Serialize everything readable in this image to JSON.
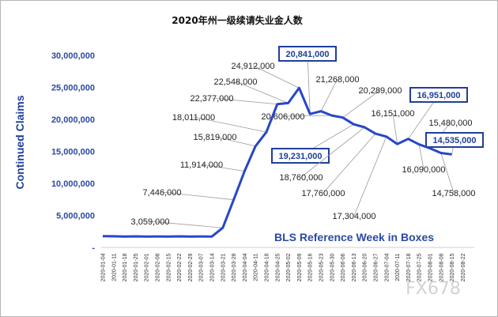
{
  "chart_data": {
    "type": "line",
    "title": "2020年州一级续请失业金人数",
    "ylabel": "Continued Claims",
    "xlabel": "",
    "ylim": [
      0,
      30000000
    ],
    "yticks": [
      {
        "v": 5000000,
        "label": "5,000,000"
      },
      {
        "v": 10000000,
        "label": "10,000,000"
      },
      {
        "v": 15000000,
        "label": "15,000,000"
      },
      {
        "v": 20000000,
        "label": "20,000,000"
      },
      {
        "v": 25000000,
        "label": "25,000,000"
      },
      {
        "v": 30000000,
        "label": "30,000,000"
      }
    ],
    "zero_tick_label": "-",
    "x": [
      "2020-01-04",
      "2020-01-11",
      "2020-01-18",
      "2020-01-25",
      "2020-02-01",
      "2020-02-08",
      "2020-02-15",
      "2020-02-22",
      "2020-02-29",
      "2020-03-07",
      "2020-03-14",
      "2020-03-21",
      "2020-03-28",
      "2020-04-04",
      "2020-04-11",
      "2020-04-18",
      "2020-04-25",
      "2020-05-02",
      "2020-05-09",
      "2020-05-16",
      "2020-05-23",
      "2020-05-30",
      "2020-06-06",
      "2020-06-13",
      "2020-06-20",
      "2020-06-27",
      "2020-07-04",
      "2020-07-11",
      "2020-07-18",
      "2020-07-25",
      "2020-08-01",
      "2020-08-08",
      "2020-08-15",
      "2020-08-22"
    ],
    "values": [
      1760000,
      1740000,
      1700000,
      1730000,
      1690000,
      1720000,
      1700000,
      1730000,
      1690000,
      1720000,
      1700000,
      3059000,
      7446000,
      11914000,
      15819000,
      18011000,
      22377000,
      22548000,
      24912000,
      20841000,
      21268000,
      20606000,
      20289000,
      19231000,
      18760000,
      17760000,
      17304000,
      16151000,
      16951000,
      16090000,
      15480000,
      14758000,
      14535000,
      null
    ],
    "color": "#2746c8",
    "annotations": [
      {
        "label": "3,059,000",
        "i": 11,
        "boxed": false
      },
      {
        "label": "7,446,000",
        "i": 12,
        "boxed": false
      },
      {
        "label": "11,914,000",
        "i": 13,
        "boxed": false
      },
      {
        "label": "15,819,000",
        "i": 14,
        "boxed": false
      },
      {
        "label": "18,011,000",
        "i": 15,
        "boxed": false
      },
      {
        "label": "22,377,000",
        "i": 16,
        "boxed": false
      },
      {
        "label": "22,548,000",
        "i": 17,
        "boxed": false
      },
      {
        "label": "24,912,000",
        "i": 18,
        "boxed": false
      },
      {
        "label": "20,841,000",
        "i": 19,
        "boxed": true
      },
      {
        "label": "21,268,000",
        "i": 20,
        "boxed": false
      },
      {
        "label": "20,606,000",
        "i": 21,
        "boxed": false
      },
      {
        "label": "20,289,000",
        "i": 22,
        "boxed": false
      },
      {
        "label": "19,231,000",
        "i": 23,
        "boxed": true
      },
      {
        "label": "18,760,000",
        "i": 24,
        "boxed": false
      },
      {
        "label": "17,760,000",
        "i": 25,
        "boxed": false
      },
      {
        "label": "17,304,000",
        "i": 26,
        "boxed": false
      },
      {
        "label": "16,151,000",
        "i": 27,
        "boxed": false
      },
      {
        "label": "16,951,000",
        "i": 28,
        "boxed": true
      },
      {
        "label": "16,090,000",
        "i": 29,
        "boxed": false
      },
      {
        "label": "15,480,000",
        "i": 30,
        "boxed": false
      },
      {
        "label": "14,758,000",
        "i": 31,
        "boxed": false
      },
      {
        "label": "14,535,000",
        "i": 32,
        "boxed": true
      }
    ],
    "note": "BLS Reference Week in Boxes",
    "grid": false
  },
  "watermark": "FX678"
}
